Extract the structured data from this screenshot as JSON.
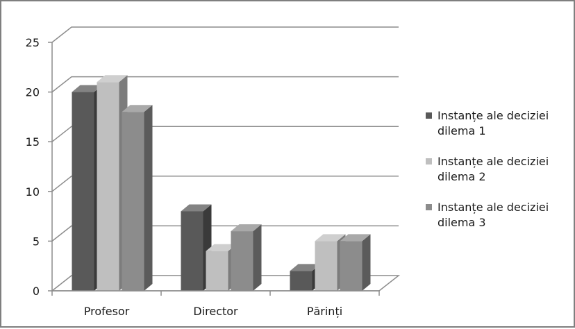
{
  "chart_data": {
    "type": "bar",
    "style": "3d-clustered-column",
    "categories": [
      "Profesor",
      "Director",
      "Părinți"
    ],
    "series": [
      {
        "name": "Instanțe ale deciziei dilema 1",
        "values": [
          20,
          8,
          2
        ],
        "color": "#595959"
      },
      {
        "name": "Instanțe ale deciziei dilema 2",
        "values": [
          21,
          4,
          5
        ],
        "color": "#bfbfbf"
      },
      {
        "name": "Instanțe ale deciziei dilema 3",
        "values": [
          18,
          6,
          5
        ],
        "color": "#8c8c8c"
      }
    ],
    "y_ticks": [
      "0",
      "5",
      "10",
      "15",
      "20",
      "25"
    ],
    "ylim": [
      0,
      25
    ],
    "grid": true,
    "legend_position": "right",
    "title": "",
    "xlabel": "",
    "ylabel": ""
  },
  "legend": [
    {
      "line1": "Instanțe ale deciziei",
      "line2": "dilema 1"
    },
    {
      "line1": "Instanțe ale deciziei",
      "line2": "dilema 2"
    },
    {
      "line1": "Instanțe ale deciziei",
      "line2": "dilema 3"
    }
  ]
}
